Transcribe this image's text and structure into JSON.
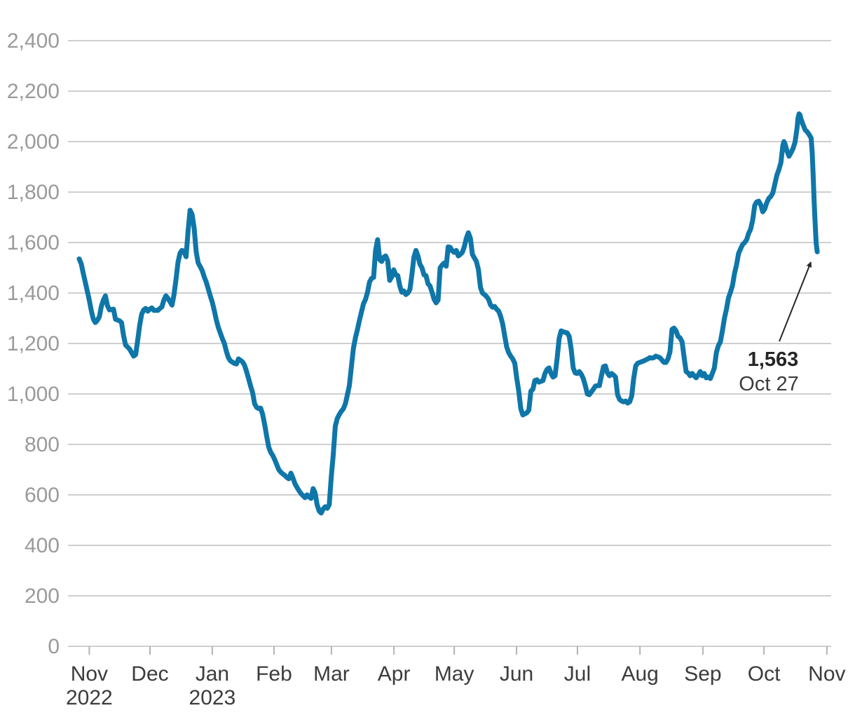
{
  "chart_data": {
    "type": "line",
    "title": "",
    "xlabel": "",
    "ylabel": "",
    "x_unit": "days since series start (late Oct 2022)",
    "ylim": [
      0,
      2400
    ],
    "grid": true,
    "legend": "none",
    "line_color": "#0f76a9",
    "grid_color": "#cfcfcf",
    "tick_color": "#b3b3b3",
    "y_label_color": "#9a9a9a",
    "x_label_color": "#3c3c3c",
    "y_ticks": [
      {
        "v": 0,
        "label": "0"
      },
      {
        "v": 200,
        "label": "200"
      },
      {
        "v": 400,
        "label": "400"
      },
      {
        "v": 600,
        "label": "600"
      },
      {
        "v": 800,
        "label": "800"
      },
      {
        "v": 1000,
        "label": "1,000"
      },
      {
        "v": 1200,
        "label": "1,200"
      },
      {
        "v": 1400,
        "label": "1,400"
      },
      {
        "v": 1600,
        "label": "1,600"
      },
      {
        "v": 1800,
        "label": "1,800"
      },
      {
        "v": 2000,
        "label": "2,000"
      },
      {
        "v": 2200,
        "label": "2,200"
      },
      {
        "v": 2400,
        "label": "2,400"
      }
    ],
    "x_ticks": [
      {
        "d": 5.0,
        "label": "Nov",
        "year": "2022"
      },
      {
        "d": 35.1,
        "label": "Dec"
      },
      {
        "d": 66.0,
        "label": "Jan",
        "year": "2023"
      },
      {
        "d": 96.6,
        "label": "Feb"
      },
      {
        "d": 125.1,
        "label": "Mar"
      },
      {
        "d": 156.1,
        "label": "Apr"
      },
      {
        "d": 186.0,
        "label": "May"
      },
      {
        "d": 216.9,
        "label": "Jun"
      },
      {
        "d": 247.1,
        "label": "Jul"
      },
      {
        "d": 278.1,
        "label": "Aug"
      },
      {
        "d": 309.3,
        "label": "Sep"
      },
      {
        "d": 339.6,
        "label": "Oct"
      },
      {
        "d": 370.8,
        "label": "Nov"
      }
    ],
    "annotation": {
      "value": "1,563",
      "date": "Oct 27",
      "point_day": 366,
      "point_value": 1563
    },
    "points": [
      [
        0,
        1535
      ],
      [
        1,
        1516
      ],
      [
        2,
        1478
      ],
      [
        3,
        1444
      ],
      [
        4,
        1408
      ],
      [
        5,
        1372
      ],
      [
        6,
        1330
      ],
      [
        7,
        1297
      ],
      [
        8,
        1283
      ],
      [
        9,
        1292
      ],
      [
        10,
        1306
      ],
      [
        11,
        1347
      ],
      [
        12,
        1372
      ],
      [
        13,
        1389
      ],
      [
        14,
        1350
      ],
      [
        15,
        1333
      ],
      [
        17,
        1336
      ],
      [
        18,
        1296
      ],
      [
        20,
        1290
      ],
      [
        21,
        1283
      ],
      [
        22,
        1231
      ],
      [
        23,
        1194
      ],
      [
        25,
        1178
      ],
      [
        26,
        1164
      ],
      [
        27,
        1150
      ],
      [
        28,
        1156
      ],
      [
        29,
        1211
      ],
      [
        30,
        1272
      ],
      [
        31,
        1317
      ],
      [
        32,
        1333
      ],
      [
        33,
        1339
      ],
      [
        34,
        1328
      ],
      [
        35,
        1336
      ],
      [
        36,
        1341
      ],
      [
        37,
        1331
      ],
      [
        39,
        1331
      ],
      [
        40,
        1339
      ],
      [
        41,
        1345
      ],
      [
        42,
        1372
      ],
      [
        43,
        1389
      ],
      [
        44,
        1379
      ],
      [
        45,
        1366
      ],
      [
        46,
        1352
      ],
      [
        47,
        1392
      ],
      [
        48,
        1453
      ],
      [
        49,
        1522
      ],
      [
        50,
        1558
      ],
      [
        51,
        1569
      ],
      [
        52,
        1564
      ],
      [
        53,
        1544
      ],
      [
        54,
        1647
      ],
      [
        55,
        1728
      ],
      [
        56,
        1711
      ],
      [
        57,
        1658
      ],
      [
        58,
        1564
      ],
      [
        59,
        1519
      ],
      [
        60,
        1505
      ],
      [
        61,
        1489
      ],
      [
        62,
        1464
      ],
      [
        63,
        1443
      ],
      [
        64,
        1417
      ],
      [
        65,
        1389
      ],
      [
        66,
        1364
      ],
      [
        67,
        1330
      ],
      [
        68,
        1294
      ],
      [
        69,
        1264
      ],
      [
        70,
        1241
      ],
      [
        71,
        1219
      ],
      [
        72,
        1200
      ],
      [
        73,
        1169
      ],
      [
        74,
        1144
      ],
      [
        75,
        1131
      ],
      [
        76,
        1126
      ],
      [
        77,
        1121
      ],
      [
        78,
        1119
      ],
      [
        79,
        1139
      ],
      [
        80,
        1133
      ],
      [
        81,
        1127
      ],
      [
        82,
        1114
      ],
      [
        83,
        1089
      ],
      [
        84,
        1061
      ],
      [
        85,
        1031
      ],
      [
        86,
        1006
      ],
      [
        87,
        961
      ],
      [
        88,
        947
      ],
      [
        89,
        942
      ],
      [
        90,
        944
      ],
      [
        91,
        919
      ],
      [
        92,
        878
      ],
      [
        93,
        831
      ],
      [
        94,
        789
      ],
      [
        95,
        769
      ],
      [
        96,
        756
      ],
      [
        97,
        739
      ],
      [
        98,
        719
      ],
      [
        99,
        700
      ],
      [
        100,
        690
      ],
      [
        101,
        683
      ],
      [
        102,
        677
      ],
      [
        103,
        669
      ],
      [
        104,
        664
      ],
      [
        105,
        686
      ],
      [
        106,
        667
      ],
      [
        107,
        644
      ],
      [
        108,
        630
      ],
      [
        109,
        617
      ],
      [
        110,
        605
      ],
      [
        111,
        597
      ],
      [
        112,
        589
      ],
      [
        113,
        600
      ],
      [
        114,
        592
      ],
      [
        115,
        586
      ],
      [
        116,
        625
      ],
      [
        117,
        608
      ],
      [
        118,
        561
      ],
      [
        119,
        536
      ],
      [
        120,
        528
      ],
      [
        121,
        544
      ],
      [
        122,
        553
      ],
      [
        123,
        547
      ],
      [
        124,
        561
      ],
      [
        125,
        672
      ],
      [
        126,
        758
      ],
      [
        127,
        872
      ],
      [
        128,
        903
      ],
      [
        129,
        919
      ],
      [
        130,
        931
      ],
      [
        131,
        941
      ],
      [
        132,
        961
      ],
      [
        133,
        997
      ],
      [
        134,
        1033
      ],
      [
        135,
        1108
      ],
      [
        136,
        1181
      ],
      [
        137,
        1223
      ],
      [
        138,
        1256
      ],
      [
        139,
        1292
      ],
      [
        140,
        1325
      ],
      [
        141,
        1358
      ],
      [
        142,
        1375
      ],
      [
        143,
        1403
      ],
      [
        144,
        1444
      ],
      [
        145,
        1458
      ],
      [
        146,
        1462
      ],
      [
        147,
        1569
      ],
      [
        148,
        1611
      ],
      [
        149,
        1533
      ],
      [
        150,
        1525
      ],
      [
        151,
        1542
      ],
      [
        152,
        1547
      ],
      [
        153,
        1528
      ],
      [
        154,
        1450
      ],
      [
        155,
        1464
      ],
      [
        156,
        1492
      ],
      [
        157,
        1472
      ],
      [
        158,
        1469
      ],
      [
        159,
        1428
      ],
      [
        160,
        1403
      ],
      [
        161,
        1408
      ],
      [
        162,
        1394
      ],
      [
        163,
        1400
      ],
      [
        164,
        1414
      ],
      [
        165,
        1472
      ],
      [
        166,
        1542
      ],
      [
        167,
        1569
      ],
      [
        168,
        1547
      ],
      [
        169,
        1514
      ],
      [
        170,
        1500
      ],
      [
        171,
        1472
      ],
      [
        172,
        1469
      ],
      [
        173,
        1436
      ],
      [
        174,
        1428
      ],
      [
        175,
        1403
      ],
      [
        176,
        1375
      ],
      [
        177,
        1361
      ],
      [
        178,
        1372
      ],
      [
        179,
        1500
      ],
      [
        180,
        1511
      ],
      [
        181,
        1519
      ],
      [
        182,
        1506
      ],
      [
        183,
        1583
      ],
      [
        184,
        1581
      ],
      [
        185,
        1567
      ],
      [
        186,
        1561
      ],
      [
        187,
        1569
      ],
      [
        188,
        1547
      ],
      [
        189,
        1553
      ],
      [
        190,
        1561
      ],
      [
        191,
        1583
      ],
      [
        192,
        1617
      ],
      [
        193,
        1639
      ],
      [
        194,
        1617
      ],
      [
        195,
        1553
      ],
      [
        196,
        1539
      ],
      [
        197,
        1525
      ],
      [
        198,
        1492
      ],
      [
        199,
        1422
      ],
      [
        200,
        1400
      ],
      [
        201,
        1394
      ],
      [
        202,
        1386
      ],
      [
        203,
        1375
      ],
      [
        204,
        1353
      ],
      [
        205,
        1344
      ],
      [
        206,
        1347
      ],
      [
        207,
        1336
      ],
      [
        208,
        1328
      ],
      [
        209,
        1308
      ],
      [
        210,
        1278
      ],
      [
        211,
        1231
      ],
      [
        212,
        1186
      ],
      [
        213,
        1164
      ],
      [
        214,
        1150
      ],
      [
        215,
        1139
      ],
      [
        216,
        1122
      ],
      [
        217,
        1061
      ],
      [
        218,
        1011
      ],
      [
        219,
        942
      ],
      [
        220,
        917
      ],
      [
        221,
        921
      ],
      [
        222,
        925
      ],
      [
        223,
        936
      ],
      [
        224,
        1011
      ],
      [
        225,
        1019
      ],
      [
        226,
        1053
      ],
      [
        227,
        1056
      ],
      [
        228,
        1047
      ],
      [
        229,
        1050
      ],
      [
        230,
        1053
      ],
      [
        231,
        1081
      ],
      [
        232,
        1097
      ],
      [
        233,
        1103
      ],
      [
        234,
        1081
      ],
      [
        235,
        1067
      ],
      [
        236,
        1072
      ],
      [
        237,
        1139
      ],
      [
        238,
        1219
      ],
      [
        239,
        1250
      ],
      [
        240,
        1247
      ],
      [
        241,
        1244
      ],
      [
        242,
        1242
      ],
      [
        243,
        1228
      ],
      [
        244,
        1178
      ],
      [
        245,
        1103
      ],
      [
        246,
        1083
      ],
      [
        247,
        1081
      ],
      [
        248,
        1089
      ],
      [
        249,
        1078
      ],
      [
        250,
        1061
      ],
      [
        251,
        1033
      ],
      [
        252,
        1000
      ],
      [
        253,
        997
      ],
      [
        254,
        1008
      ],
      [
        255,
        1019
      ],
      [
        256,
        1031
      ],
      [
        257,
        1033
      ],
      [
        258,
        1033
      ],
      [
        259,
        1072
      ],
      [
        260,
        1108
      ],
      [
        261,
        1111
      ],
      [
        262,
        1083
      ],
      [
        263,
        1072
      ],
      [
        264,
        1081
      ],
      [
        265,
        1075
      ],
      [
        266,
        1067
      ],
      [
        267,
        997
      ],
      [
        268,
        978
      ],
      [
        269,
        972
      ],
      [
        270,
        969
      ],
      [
        271,
        972
      ],
      [
        272,
        964
      ],
      [
        273,
        969
      ],
      [
        274,
        992
      ],
      [
        275,
        1061
      ],
      [
        276,
        1111
      ],
      [
        277,
        1122
      ],
      [
        278,
        1125
      ],
      [
        280,
        1131
      ],
      [
        282,
        1139
      ],
      [
        283,
        1144
      ],
      [
        284,
        1142
      ],
      [
        285,
        1144
      ],
      [
        286,
        1150
      ],
      [
        287,
        1147
      ],
      [
        288,
        1144
      ],
      [
        290,
        1125
      ],
      [
        291,
        1125
      ],
      [
        292,
        1139
      ],
      [
        293,
        1167
      ],
      [
        294,
        1256
      ],
      [
        295,
        1261
      ],
      [
        296,
        1250
      ],
      [
        297,
        1228
      ],
      [
        298,
        1222
      ],
      [
        299,
        1206
      ],
      [
        300,
        1144
      ],
      [
        301,
        1089
      ],
      [
        302,
        1083
      ],
      [
        303,
        1072
      ],
      [
        304,
        1081
      ],
      [
        305,
        1072
      ],
      [
        306,
        1064
      ],
      [
        307,
        1075
      ],
      [
        308,
        1089
      ],
      [
        309,
        1072
      ],
      [
        310,
        1081
      ],
      [
        311,
        1064
      ],
      [
        312,
        1067
      ],
      [
        313,
        1061
      ],
      [
        314,
        1081
      ],
      [
        315,
        1103
      ],
      [
        316,
        1164
      ],
      [
        317,
        1192
      ],
      [
        318,
        1206
      ],
      [
        319,
        1250
      ],
      [
        320,
        1300
      ],
      [
        321,
        1336
      ],
      [
        322,
        1381
      ],
      [
        323,
        1403
      ],
      [
        324,
        1430
      ],
      [
        325,
        1478
      ],
      [
        326,
        1512
      ],
      [
        327,
        1556
      ],
      [
        328,
        1575
      ],
      [
        329,
        1592
      ],
      [
        330,
        1600
      ],
      [
        331,
        1611
      ],
      [
        332,
        1636
      ],
      [
        333,
        1653
      ],
      [
        334,
        1689
      ],
      [
        335,
        1747
      ],
      [
        336,
        1761
      ],
      [
        337,
        1764
      ],
      [
        338,
        1750
      ],
      [
        339,
        1722
      ],
      [
        340,
        1733
      ],
      [
        341,
        1758
      ],
      [
        342,
        1775
      ],
      [
        343,
        1783
      ],
      [
        344,
        1797
      ],
      [
        345,
        1831
      ],
      [
        346,
        1867
      ],
      [
        347,
        1889
      ],
      [
        348,
        1917
      ],
      [
        349,
        1986
      ],
      [
        349.5,
        2000
      ],
      [
        350,
        1992
      ],
      [
        351,
        1964
      ],
      [
        352,
        1942
      ],
      [
        353,
        1956
      ],
      [
        354,
        1972
      ],
      [
        355,
        1997
      ],
      [
        356,
        2053
      ],
      [
        356.5,
        2094
      ],
      [
        357,
        2110
      ],
      [
        357.5,
        2105
      ],
      [
        358,
        2089
      ],
      [
        359,
        2067
      ],
      [
        360,
        2047
      ],
      [
        361,
        2039
      ],
      [
        362,
        2028
      ],
      [
        363,
        2014
      ],
      [
        363.5,
        1958
      ],
      [
        364,
        1867
      ],
      [
        364.5,
        1764
      ],
      [
        365,
        1672
      ],
      [
        365.5,
        1597
      ],
      [
        366,
        1563
      ]
    ]
  }
}
